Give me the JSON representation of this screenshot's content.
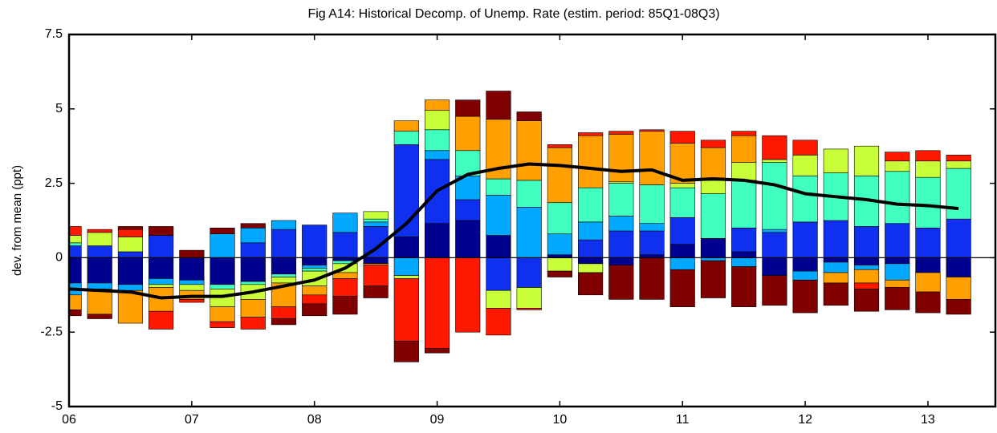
{
  "chart_data": {
    "type": "bar",
    "stacked": true,
    "title": "Fig A14: Historical Decomp. of Unemp. Rate (estim. period: 85Q1-08Q3)",
    "y_label": "dev. from mean (ppt)",
    "x": [
      6,
      6.25,
      6.5,
      6.75,
      7,
      7.25,
      7.5,
      7.75,
      8,
      8.25,
      8.5,
      8.75,
      9,
      9.25,
      9.5,
      9.75,
      10,
      10.25,
      10.5,
      10.75,
      11,
      11.25,
      11.5,
      11.75,
      12,
      12.25,
      12.5,
      12.75,
      13,
      13.25
    ],
    "xlim": [
      6,
      13.55
    ],
    "xticks": [
      {
        "value": 6,
        "label": "06"
      },
      {
        "value": 7,
        "label": "07"
      },
      {
        "value": 8,
        "label": "08"
      },
      {
        "value": 9,
        "label": "09"
      },
      {
        "value": 10,
        "label": "10"
      },
      {
        "value": 11,
        "label": "11"
      },
      {
        "value": 12,
        "label": "12"
      },
      {
        "value": 13,
        "label": "13"
      }
    ],
    "ylim": [
      -5,
      7.5
    ],
    "yticks": [
      -5,
      -2.5,
      0,
      2.5,
      5,
      7.5
    ],
    "series": [
      {
        "color": "#00008f",
        "values": [
          -0.85,
          -0.85,
          -0.9,
          -0.7,
          -0.75,
          -0.9,
          -0.8,
          -0.55,
          -0.25,
          -0.1,
          -0.2,
          0.7,
          1.15,
          1.25,
          0.75,
          0,
          0.1,
          -0.2,
          -0.25,
          0.1,
          0.45,
          0.65,
          0.2,
          -0.6,
          -0.45,
          -0.15,
          -0.25,
          -0.2,
          -0.5,
          -0.65
        ]
      },
      {
        "color": "#1030f0",
        "values": [
          0.4,
          0.4,
          0.2,
          0.75,
          0,
          0,
          0.5,
          0.95,
          1.1,
          0.85,
          1.05,
          3.1,
          2.15,
          0.7,
          -1.1,
          -1.0,
          0,
          0.6,
          0.9,
          0.8,
          0.9,
          0,
          0.8,
          0.85,
          1.2,
          1.25,
          1.05,
          1.15,
          1.0,
          1.3
        ]
      },
      {
        "color": "#00a8ff",
        "values": [
          -0.4,
          -0.2,
          -0.2,
          -0.2,
          -0.15,
          0.8,
          0.5,
          0.3,
          -0.1,
          0.65,
          0.15,
          -0.6,
          0.3,
          0.8,
          1.35,
          1.7,
          0.7,
          0.6,
          0.5,
          0.25,
          -0.4,
          -0.1,
          -0.3,
          0.1,
          -0.3,
          -0.35,
          -0.15,
          -0.55,
          0,
          0
        ]
      },
      {
        "color": "#40ffc0",
        "values": [
          0.1,
          0,
          0,
          0,
          0,
          -0.15,
          -0.1,
          -0.1,
          -0.1,
          -0.1,
          0.1,
          0.45,
          0.7,
          0.85,
          0.55,
          0.9,
          1.05,
          1.15,
          1.1,
          1.3,
          1.0,
          1.5,
          1.6,
          2.25,
          1.55,
          1.6,
          1.7,
          1.75,
          1.7,
          1.7
        ]
      },
      {
        "color": "#c8ff38",
        "values": [
          0.25,
          0.45,
          0.5,
          -0.1,
          -0.2,
          -0.6,
          -0.5,
          -0.2,
          -0.5,
          -0.3,
          0.25,
          -0.1,
          0.65,
          0,
          -0.6,
          -0.7,
          -0.45,
          -0.3,
          0.05,
          0,
          0.15,
          0.45,
          0.6,
          0.1,
          0.7,
          0.8,
          1.0,
          0.35,
          0.55,
          0.25
        ]
      },
      {
        "color": "#ffa000",
        "values": [
          -0.5,
          -0.85,
          -1.1,
          -0.8,
          -0.3,
          -0.5,
          -0.6,
          -0.8,
          -0.3,
          -0.2,
          -0.05,
          0.35,
          0.35,
          1.15,
          2.0,
          2.0,
          1.85,
          1.75,
          1.6,
          1.8,
          1.35,
          1.1,
          0.9,
          0,
          0,
          -0.35,
          -0.45,
          -0.25,
          -0.65,
          -0.75
        ]
      },
      {
        "color": "#ff1800",
        "values": [
          0.3,
          0.1,
          0.25,
          -0.6,
          -0.1,
          -0.2,
          -0.4,
          -0.4,
          -0.3,
          -0.6,
          -0.7,
          -2.1,
          -3.05,
          -2.5,
          -0.9,
          -0.05,
          0.1,
          0.1,
          0.1,
          0.05,
          0.4,
          0.25,
          0.15,
          0.8,
          0.5,
          0,
          -0.2,
          0.3,
          0.35,
          0.2
        ]
      },
      {
        "color": "#800000",
        "values": [
          -0.2,
          -0.15,
          0.1,
          0.3,
          0.25,
          0.2,
          0.15,
          -0.2,
          -0.4,
          -0.6,
          -0.4,
          -0.7,
          -0.15,
          0.55,
          0.95,
          0.3,
          -0.2,
          -0.75,
          -1.15,
          -1.4,
          -1.25,
          -1.25,
          -1.35,
          -1.0,
          -1.1,
          -0.75,
          -0.75,
          -0.75,
          -0.7,
          -0.5
        ]
      },
      {
        "type": "line",
        "color": "#000000",
        "values": [
          -1.05,
          -1.1,
          -1.15,
          -1.35,
          -1.3,
          -1.3,
          -1.15,
          -0.95,
          -0.75,
          -0.35,
          0.3,
          1.15,
          2.25,
          2.8,
          3.0,
          3.15,
          3.1,
          3.0,
          2.9,
          2.95,
          2.6,
          2.65,
          2.6,
          2.45,
          2.15,
          2.05,
          1.95,
          1.8,
          1.75,
          1.65
        ]
      }
    ]
  }
}
